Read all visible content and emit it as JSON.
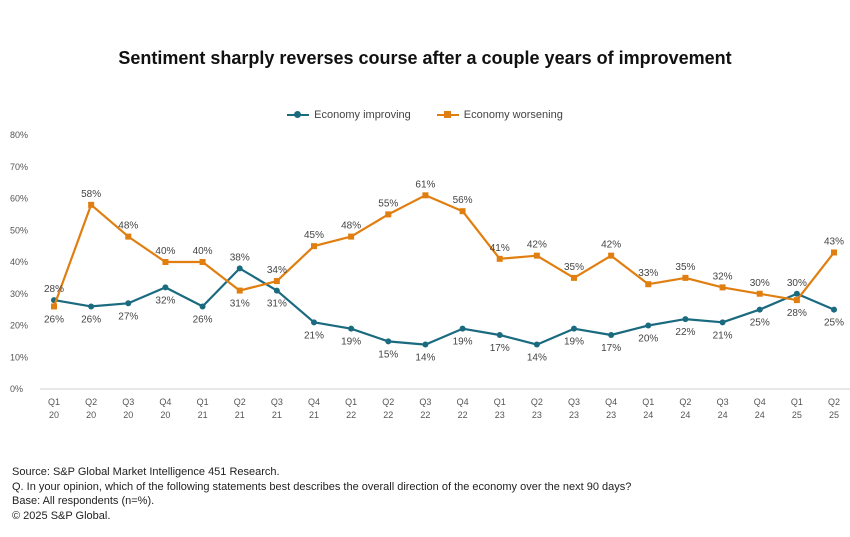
{
  "title": "Sentiment sharply reverses course after a couple years of improvement",
  "chart_data": {
    "type": "line",
    "categories": [
      [
        "Q1",
        "20"
      ],
      [
        "Q2",
        "20"
      ],
      [
        "Q3",
        "20"
      ],
      [
        "Q4",
        "20"
      ],
      [
        "Q1",
        "21"
      ],
      [
        "Q2",
        "21"
      ],
      [
        "Q3",
        "21"
      ],
      [
        "Q4",
        "21"
      ],
      [
        "Q1",
        "22"
      ],
      [
        "Q2",
        "22"
      ],
      [
        "Q3",
        "22"
      ],
      [
        "Q4",
        "22"
      ],
      [
        "Q1",
        "23"
      ],
      [
        "Q2",
        "23"
      ],
      [
        "Q3",
        "23"
      ],
      [
        "Q4",
        "23"
      ],
      [
        "Q1",
        "24"
      ],
      [
        "Q2",
        "24"
      ],
      [
        "Q3",
        "24"
      ],
      [
        "Q4",
        "24"
      ],
      [
        "Q1",
        "25"
      ],
      [
        "Q2",
        "25"
      ]
    ],
    "series": [
      {
        "name": "Economy improving",
        "color": "#1a6a80",
        "marker": "circle",
        "values": [
          28,
          26,
          27,
          32,
          26,
          38,
          31,
          21,
          19,
          15,
          14,
          19,
          17,
          14,
          19,
          17,
          20,
          22,
          21,
          25,
          30,
          25
        ]
      },
      {
        "name": "Economy worsening",
        "color": "#e07e10",
        "marker": "square",
        "values": [
          26,
          58,
          48,
          40,
          40,
          31,
          34,
          45,
          48,
          55,
          61,
          56,
          41,
          42,
          35,
          42,
          33,
          35,
          32,
          30,
          28,
          43
        ]
      }
    ],
    "value_labels": {
      "Economy improving": [
        "28%",
        "26%",
        "27%",
        "32%",
        "26%",
        "38%",
        "31%",
        "21%",
        "19%",
        "15%",
        "14%",
        "19%",
        "17%",
        "14%",
        "19%",
        "17%",
        "20%",
        "22%",
        "21%",
        "25%",
        "30%",
        "25%"
      ],
      "Economy worsening": [
        "26%",
        "58%",
        "48%",
        "40%",
        "40%",
        "31%",
        "34%",
        "45%",
        "48%",
        "55%",
        "61%",
        "56%",
        "41%",
        "42%",
        "35%",
        "42%",
        "33%",
        "35%",
        "32%",
        "30%",
        "28%",
        "43%"
      ]
    },
    "ylim": [
      0,
      80
    ],
    "yticks": [
      "0%",
      "10%",
      "20%",
      "30%",
      "40%",
      "50%",
      "60%",
      "70%",
      "80%"
    ],
    "grid": false,
    "legend_position": "top-center"
  },
  "footer": {
    "source": "Source: S&P Global Market Intelligence 451 Research.",
    "question": "Q. In your opinion, which of the following statements best describes the overall direction of the economy over the next 90 days?",
    "base": "Base: All respondents (n=%).",
    "copyright": "© 2025 S&P Global."
  }
}
